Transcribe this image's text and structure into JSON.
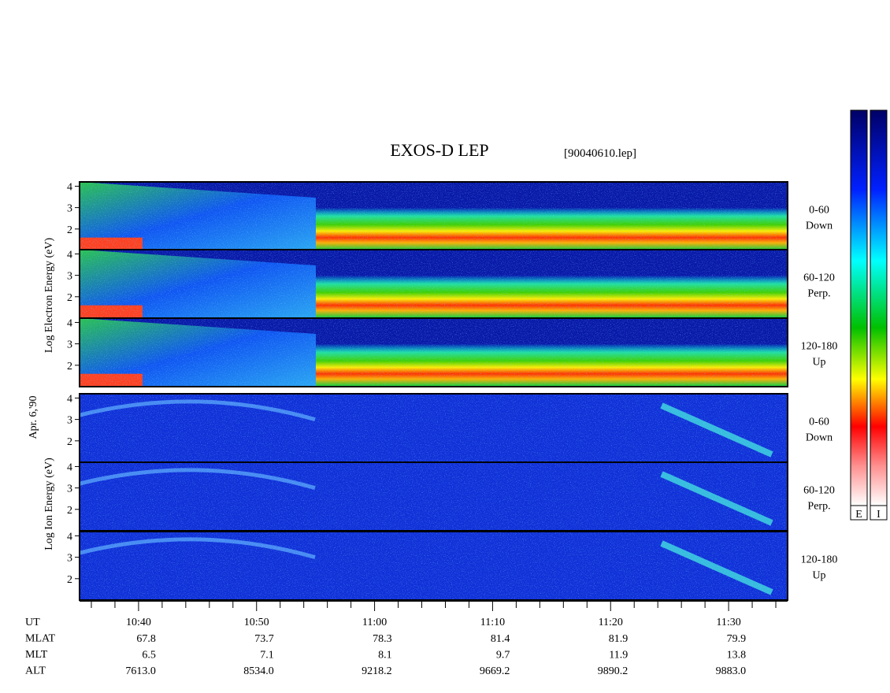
{
  "title": "EXOS-D LEP",
  "file": "[90040610.lep]",
  "date": "Apr. 6,'90",
  "energy_axis": {
    "ylim": [
      1,
      4.2
    ],
    "yticks": [
      2,
      3,
      4
    ]
  },
  "groups": [
    {
      "label": "Log Electron Energy (eV)",
      "kind": "electron",
      "panels": [
        {
          "angle": "0-60",
          "direction": "Down"
        },
        {
          "angle": "60-120",
          "direction": "Perp."
        },
        {
          "angle": "120-180",
          "direction": "Up"
        }
      ]
    },
    {
      "label": "Log Ion Energy (eV)",
      "kind": "ion",
      "panels": [
        {
          "angle": "0-60",
          "direction": "Down"
        },
        {
          "angle": "60-120",
          "direction": "Perp."
        },
        {
          "angle": "120-180",
          "direction": "Up"
        }
      ]
    }
  ],
  "time_axis": {
    "xlim": [
      635,
      695
    ],
    "xticks": [
      {
        "value": 640,
        "label": "10:40"
      },
      {
        "value": 650,
        "label": "10:50"
      },
      {
        "value": 660,
        "label": "11:00"
      },
      {
        "value": 670,
        "label": "11:10"
      },
      {
        "value": 680,
        "label": "11:20"
      },
      {
        "value": 690,
        "label": "11:30"
      }
    ],
    "minor_ticks": [
      636,
      638,
      642,
      644,
      646,
      648,
      652,
      654,
      656,
      658,
      662,
      664,
      666,
      668,
      672,
      674,
      676,
      678,
      682,
      684,
      686,
      688,
      692,
      694
    ]
  },
  "orbit": {
    "row_labels": [
      "UT",
      "MLAT",
      "MLT",
      "ALT"
    ],
    "rows": [
      [
        "67.8",
        "73.7",
        "78.3",
        "81.4",
        "81.9",
        "79.9"
      ],
      [
        "6.5",
        "7.1",
        "8.1",
        "9.7",
        "11.9",
        "13.8"
      ],
      [
        "7613.0",
        "8534.0",
        "9218.2",
        "9669.2",
        "9890.2",
        "9883.0"
      ]
    ]
  },
  "colorbars": [
    "E",
    "I"
  ]
}
